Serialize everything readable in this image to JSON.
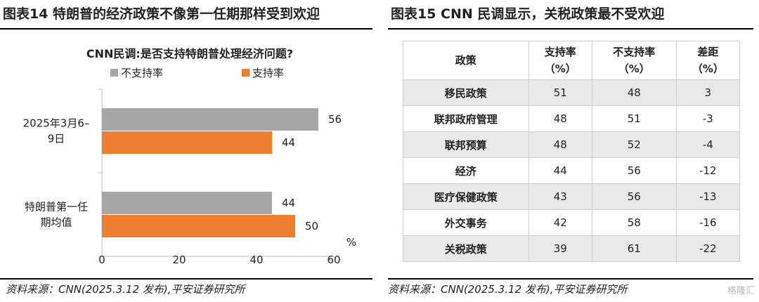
{
  "left_panel": {
    "title": "图表14    特朗普的经济政策不像第一任期那样受到欢迎",
    "source": "资料来源：CNN(2025.3.12 发布),平安证券研究所"
  },
  "right_panel": {
    "title": "图表15    CNN 民调显示，关税政策最不受欢迎",
    "source": "资料来源：CNN(2025.3.12 发布),平安证券研究所",
    "table": {
      "headers": [
        [
          "政策"
        ],
        [
          "支持率",
          "（%）"
        ],
        [
          "不支持率",
          "（%）"
        ],
        [
          "差距",
          "（%）"
        ]
      ],
      "rows": [
        [
          "移民政策",
          "51",
          "48",
          "3"
        ],
        [
          "联邦政府管理",
          "48",
          "51",
          "-3"
        ],
        [
          "联邦预算",
          "48",
          "52",
          "-4"
        ],
        [
          "经济",
          "44",
          "56",
          "-12"
        ],
        [
          "医疗保健政策",
          "43",
          "56",
          "-13"
        ],
        [
          "外交事务",
          "42",
          "58",
          "-16"
        ],
        [
          "关税政策",
          "39",
          "61",
          "-22"
        ]
      ]
    }
  },
  "watermark": "格隆汇",
  "colors": {
    "disapprove": "#a6a6a6",
    "approve": "#ed7d31"
  },
  "chart_data": {
    "type": "bar",
    "orientation": "horizontal",
    "title": "CNN民调:是否支持特朗普处理经济问题?",
    "categories": [
      [
        "2025年3月6–",
        "9日"
      ],
      [
        "特朗普第一任",
        "期均值"
      ]
    ],
    "series": [
      {
        "name": "不支持率",
        "values": [
          56,
          44
        ]
      },
      {
        "name": "支持率",
        "values": [
          44,
          50
        ]
      }
    ],
    "xlim": [
      0,
      60
    ],
    "xticks": [
      0,
      20,
      40,
      60
    ],
    "unit_label": "%",
    "legend_position": "top",
    "data_labels": true,
    "grid": false
  }
}
